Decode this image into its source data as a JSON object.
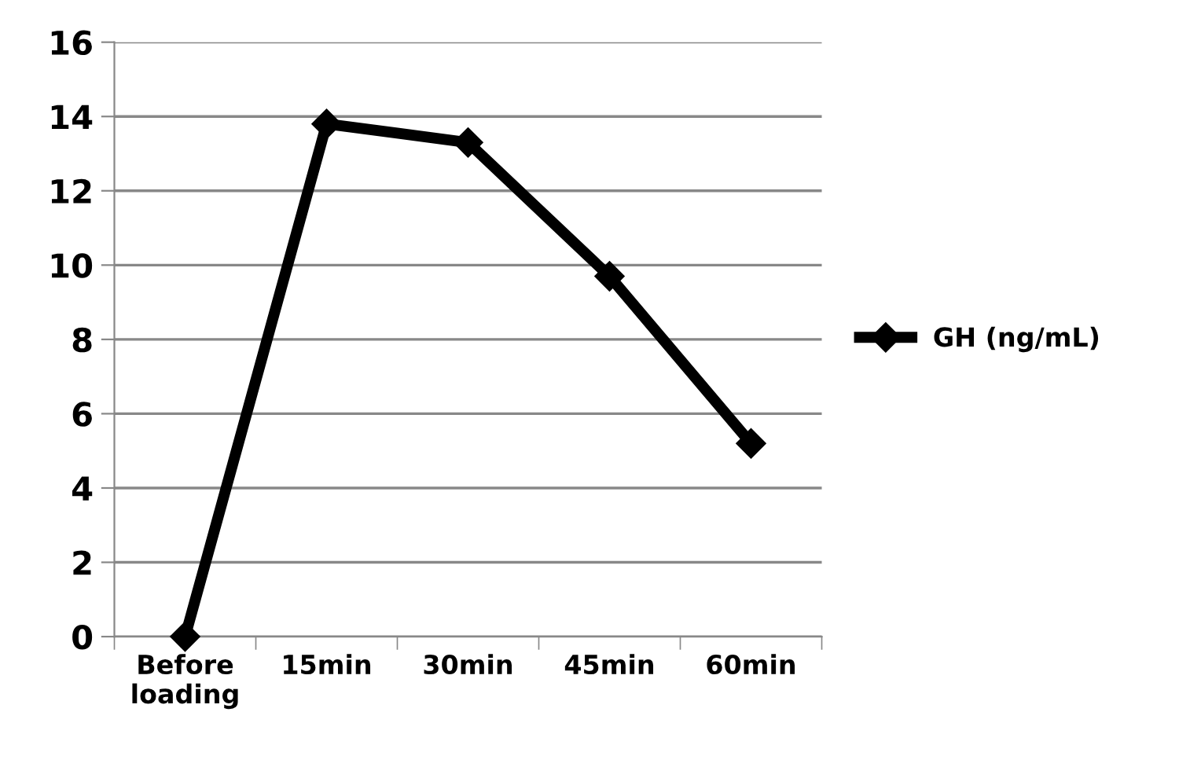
{
  "chart_data": {
    "type": "line",
    "categories": [
      "Before\nloading",
      "15min",
      "30min",
      "45min",
      "60min"
    ],
    "series": [
      {
        "name": "GH (ng/mL)",
        "color": "#000000",
        "values": [
          0,
          13.8,
          13.3,
          9.7,
          5.2
        ]
      }
    ],
    "ylim": [
      0,
      16
    ],
    "yticks": [
      0,
      2,
      4,
      6,
      8,
      10,
      12,
      14,
      16
    ],
    "grid": "y",
    "legend": "right",
    "marker": "diamond",
    "line_style": "solid"
  }
}
